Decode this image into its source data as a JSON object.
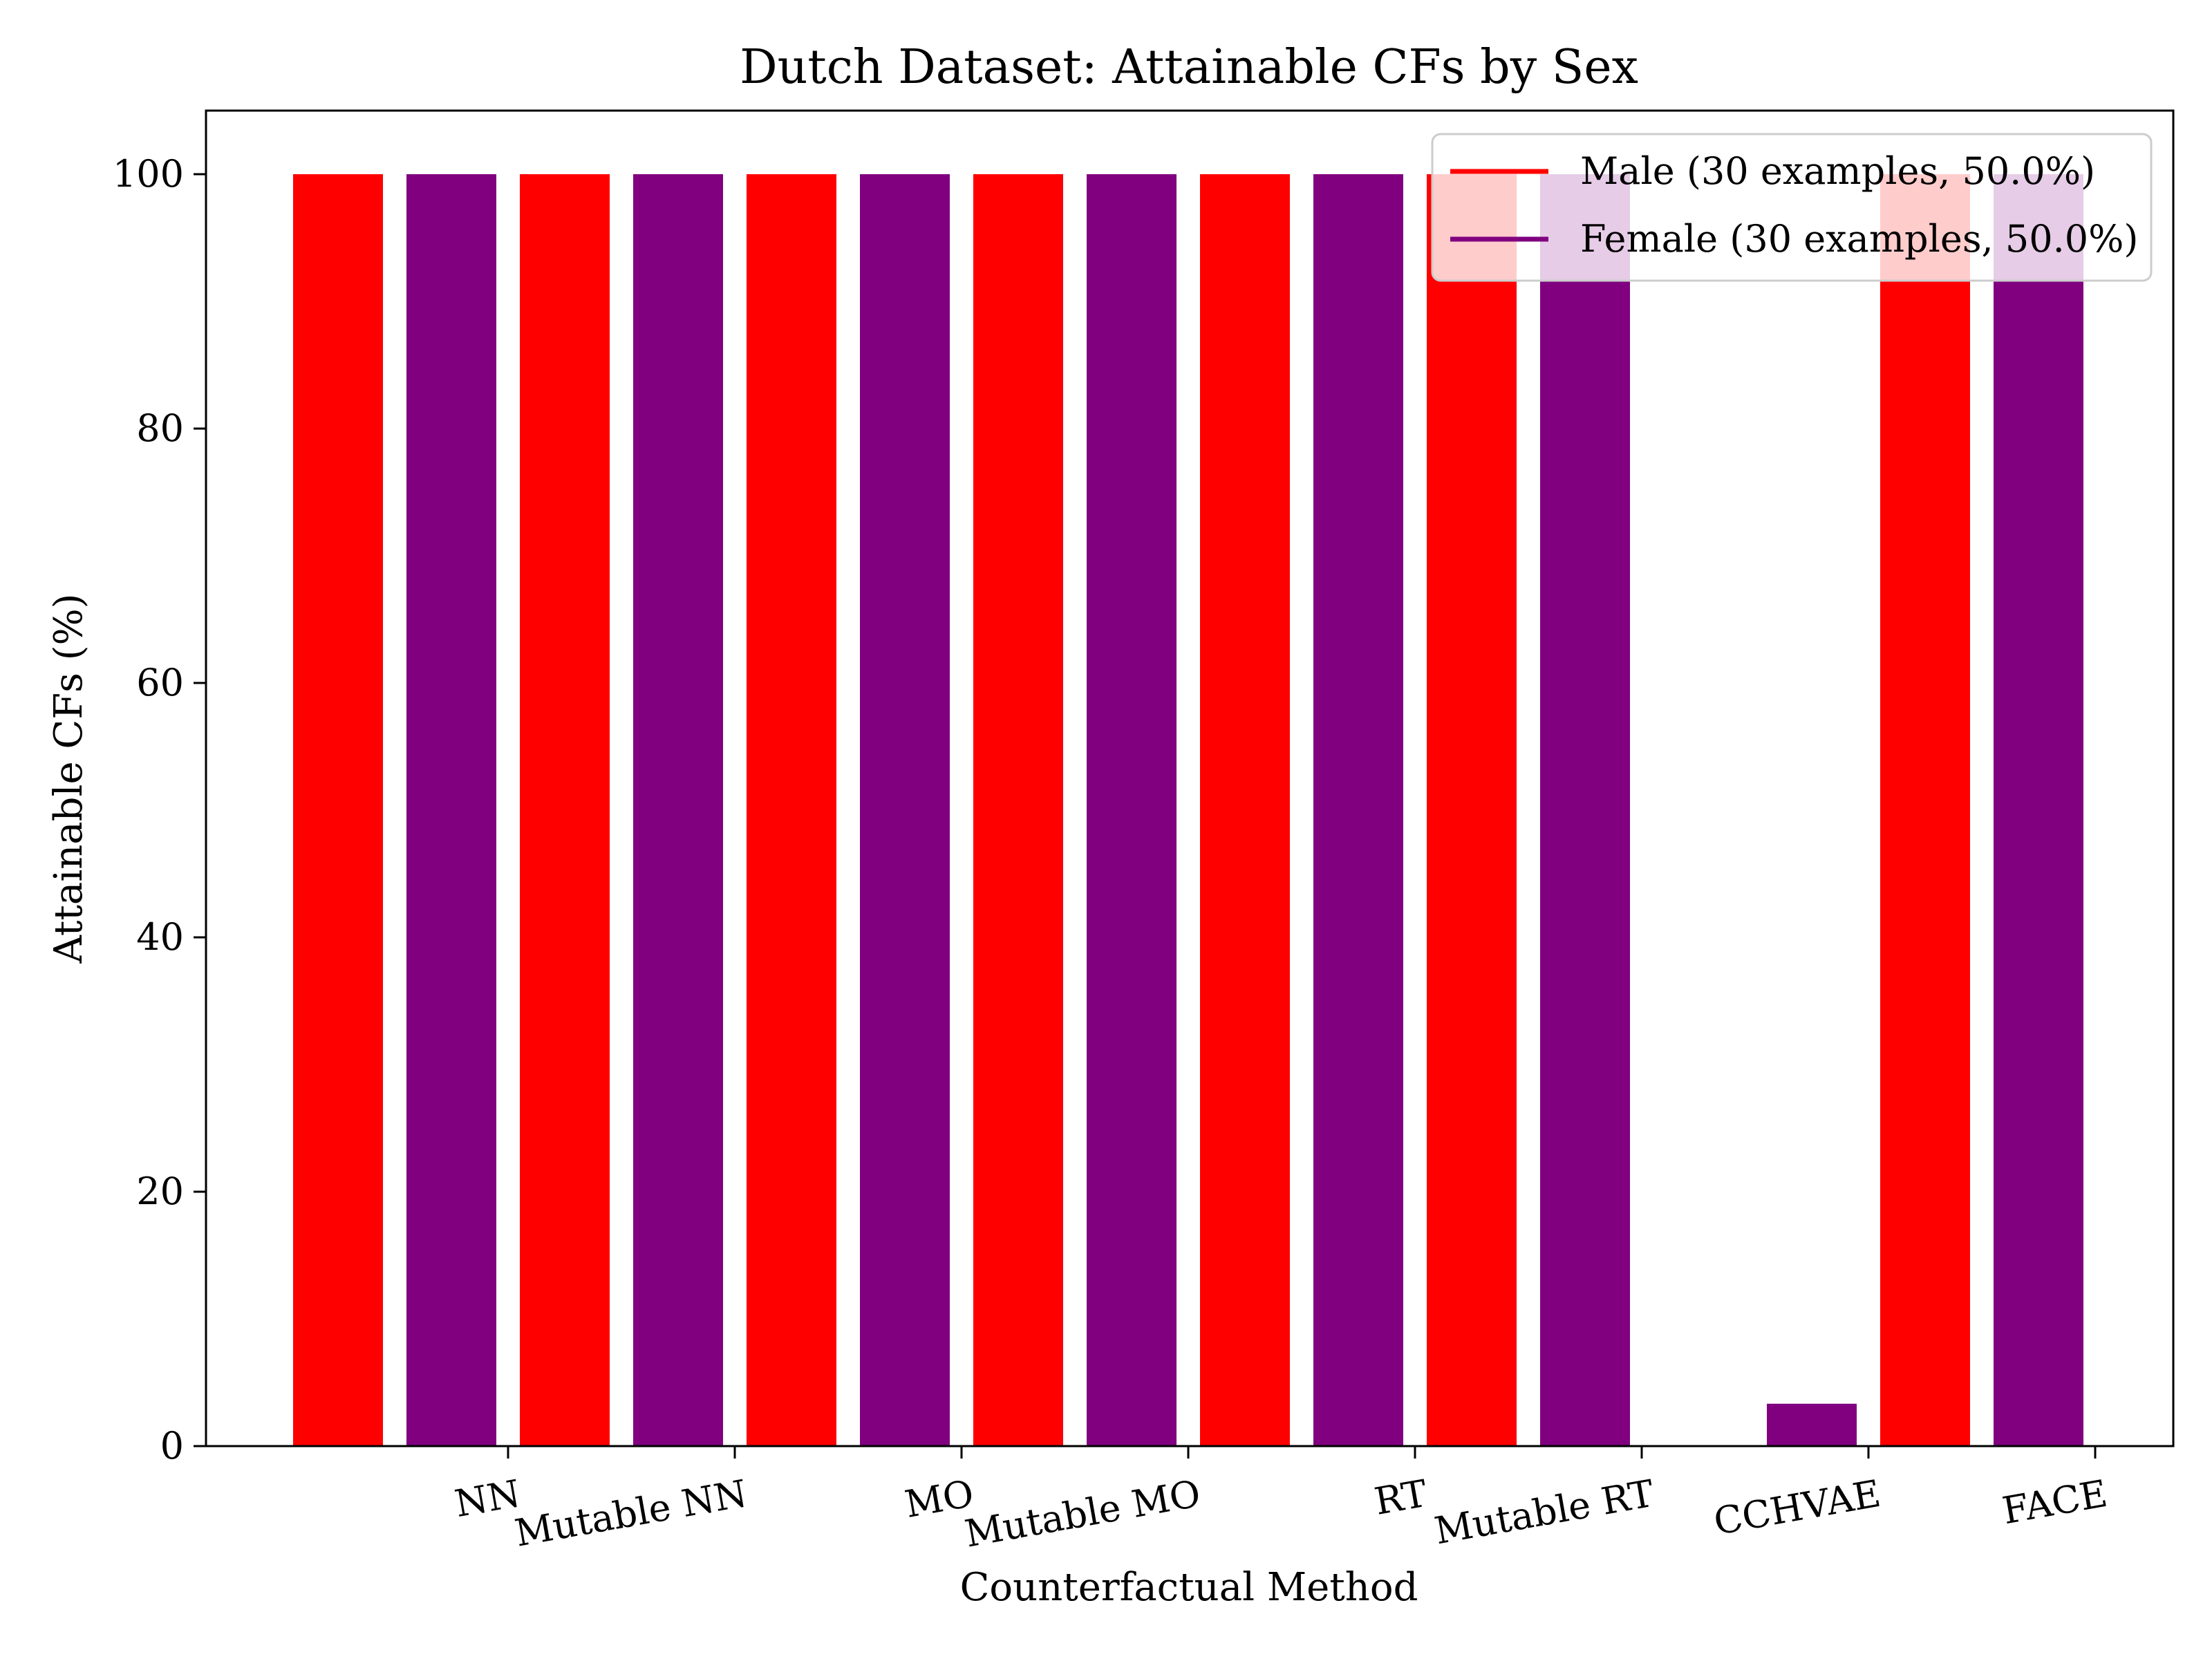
{
  "chart_data": {
    "type": "bar",
    "title": "Dutch Dataset: Attainable CFs by Sex",
    "xlabel": "Counterfactual Method",
    "ylabel": "Attainable CFs (%)",
    "ylim": [
      0,
      105
    ],
    "yticks": [
      0,
      20,
      40,
      60,
      80,
      100
    ],
    "grid": false,
    "legend_position": "top-right",
    "categories": [
      "NN",
      "Mutable NN",
      "MO",
      "Mutable MO",
      "RT",
      "Mutable RT",
      "CCHVAE",
      "FACE"
    ],
    "series": [
      {
        "name": "Male (30 examples, 50.0%)",
        "color": "#ff0000",
        "values": [
          100,
          100,
          100,
          100,
          100,
          100,
          0,
          100
        ]
      },
      {
        "name": "Female (30 examples, 50.0%)",
        "color": "#800080",
        "values": [
          100,
          100,
          100,
          100,
          100,
          100,
          3.33,
          100
        ]
      }
    ]
  }
}
